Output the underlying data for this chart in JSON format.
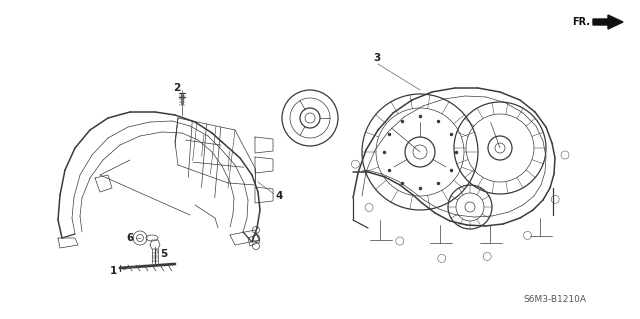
{
  "bg_color": "#ffffff",
  "fig_width": 6.4,
  "fig_height": 3.19,
  "part_code": "S6M3-B1210A",
  "line_color": "#3a3a3a",
  "label_color": "#222222",
  "leader_color": "#666666",
  "lw_main": 0.9,
  "lw_thin": 0.5,
  "lw_thick": 1.1
}
